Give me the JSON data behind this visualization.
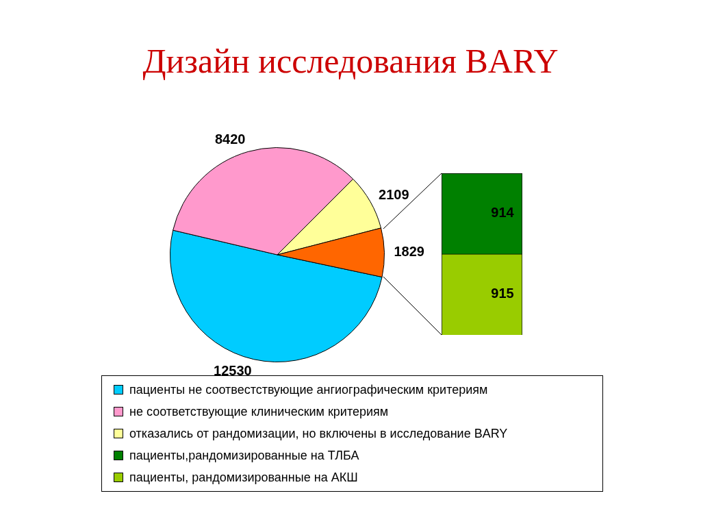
{
  "chart_data": [
    {
      "type": "pie",
      "title": "Дизайн исследования BARY",
      "categories": [
        "пациенты не соотвестствующие ангиографическим критериям",
        "не соответствующие клиническим критериям",
        "отказались от рандомизации, но включены в исследование BARY",
        null
      ],
      "values": [
        12530,
        8420,
        2109,
        1829
      ],
      "colors": [
        "#00ccff",
        "#ff99cc",
        "#ffff99",
        "#ff6600"
      ],
      "data_labels": true,
      "legend": "bottom"
    },
    {
      "type": "bar",
      "stacked": true,
      "categories": [
        null
      ],
      "series": [
        {
          "name": "пациенты, рандомизированные на АКШ",
          "color": "#99cc00",
          "values": [
            915
          ]
        },
        {
          "name": "пациенты,рандомизированные на ТЛБА",
          "color": "#008000",
          "values": [
            914
          ]
        }
      ],
      "data_labels": true,
      "tick_labels": false,
      "legend": "bottom"
    }
  ]
}
